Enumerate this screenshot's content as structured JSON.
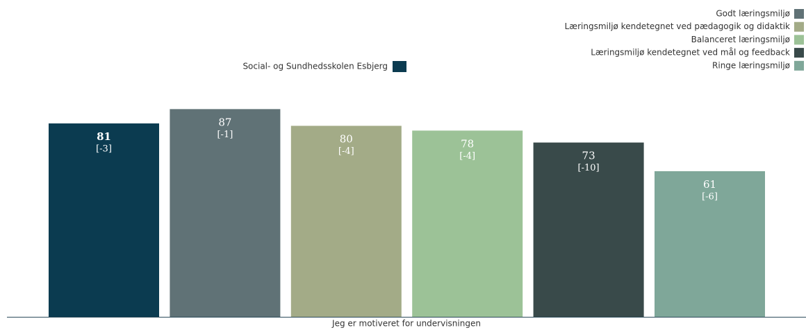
{
  "chart_data": {
    "type": "bar",
    "categories": [
      "Jeg er motiveret for undervisningen"
    ],
    "series": [
      {
        "name": "Social- og Sundhedsskolen Esbjerg",
        "color": "#0b3b50",
        "values": [
          81
        ],
        "change": "[-3]",
        "legend": "left"
      },
      {
        "name": "Godt læringsmiljø",
        "color": "#607276",
        "values": [
          87
        ],
        "change": "[-1]",
        "legend": "right"
      },
      {
        "name": "Læringsmiljø kendetegnet ved pædagogik og didaktik",
        "color": "#a3ab87",
        "values": [
          80
        ],
        "change": "[-4]",
        "legend": "right"
      },
      {
        "name": "Balanceret læringsmiljø",
        "color": "#9cc297",
        "values": [
          78
        ],
        "change": "[-4]",
        "legend": "right"
      },
      {
        "name": "Læringsmiljø kendetegnet ved mål og feedback",
        "color": "#394a4a",
        "values": [
          73
        ],
        "change": "[-10]",
        "legend": "right"
      },
      {
        "name": "Ringe læringsmiljø",
        "color": "#7fa799",
        "values": [
          61
        ],
        "change": "[-6]",
        "legend": "right"
      }
    ]
  }
}
